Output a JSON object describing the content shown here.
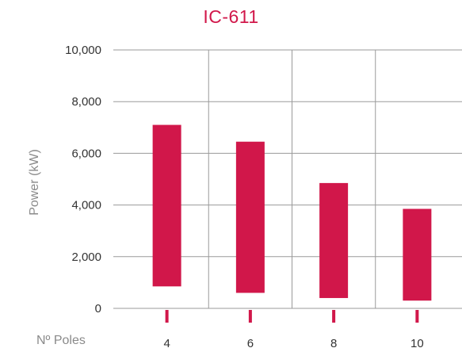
{
  "chart_data": {
    "type": "bar",
    "title": "IC-611",
    "xlabel": "Nº Poles",
    "ylabel": "Power (kW)",
    "categories": [
      "4",
      "6",
      "8",
      "10"
    ],
    "series": [
      {
        "low": [
          850,
          600,
          400,
          300
        ],
        "high": [
          7100,
          6450,
          4850,
          3850
        ]
      }
    ],
    "ylim": [
      0,
      10000
    ],
    "yticks": [
      0,
      2000,
      4000,
      6000,
      8000,
      10000
    ],
    "ytick_labels": [
      "0",
      "2,000",
      "4,000",
      "6,000",
      "8,000",
      "10,000"
    ],
    "grid": true,
    "colors": {
      "bar": "#d1174a",
      "title": "#d1174a",
      "grid": "#9a9a9a",
      "text": "#333333",
      "label": "#8a8a8a"
    }
  }
}
